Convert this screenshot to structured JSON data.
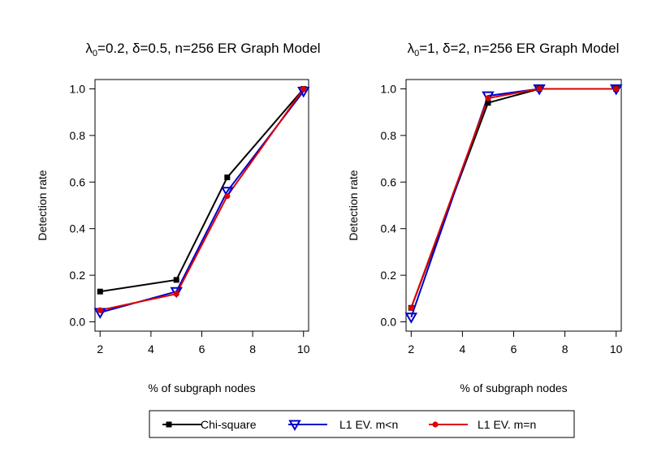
{
  "legend": {
    "entries": [
      {
        "label": "Chi-square",
        "color": "#000000",
        "marker": "square"
      },
      {
        "label": "L1 EV. m<n",
        "color": "#0000cc",
        "marker": "triangle-down"
      },
      {
        "label": "L1 EV. m=n",
        "color": "#dd0000",
        "marker": "circle"
      }
    ]
  },
  "chart_data": [
    {
      "type": "line",
      "title_pre": "λ",
      "title_sub": "0",
      "title_post": "=0.2, δ=0.5, n=256 ER Graph Model",
      "xlabel": "% of subgraph nodes",
      "ylabel": "Detection rate",
      "xlim": [
        1.8,
        10.2
      ],
      "ylim": [
        -0.04,
        1.04
      ],
      "xticks": [
        2,
        4,
        6,
        8,
        10
      ],
      "yticks": [
        "0.0",
        "0.2",
        "0.4",
        "0.6",
        "0.8",
        "1.0"
      ],
      "x": [
        2,
        5,
        7,
        10
      ],
      "series": [
        {
          "name": "Chi-square",
          "values": [
            0.13,
            0.18,
            0.62,
            1.0
          ]
        },
        {
          "name": "L1 EV. m<n",
          "values": [
            0.04,
            0.13,
            0.56,
            0.99
          ]
        },
        {
          "name": "L1 EV. m=n",
          "values": [
            0.05,
            0.12,
            0.54,
            1.0
          ]
        }
      ]
    },
    {
      "type": "line",
      "title_pre": "λ",
      "title_sub": "0",
      "title_post": "=1, δ=2, n=256 ER Graph Model",
      "xlabel": "% of subgraph nodes",
      "ylabel": "Detection rate",
      "xlim": [
        1.8,
        10.2
      ],
      "ylim": [
        -0.04,
        1.04
      ],
      "xticks": [
        2,
        4,
        6,
        8,
        10
      ],
      "yticks": [
        "0.0",
        "0.2",
        "0.4",
        "0.6",
        "0.8",
        "1.0"
      ],
      "x": [
        2,
        5,
        7,
        10
      ],
      "series": [
        {
          "name": "Chi-square",
          "values": [
            0.06,
            0.94,
            1.0,
            1.0
          ]
        },
        {
          "name": "L1 EV. m<n",
          "values": [
            0.02,
            0.97,
            1.0,
            1.0
          ]
        },
        {
          "name": "L1 EV. m=n",
          "values": [
            0.06,
            0.96,
            1.0,
            1.0
          ]
        }
      ]
    }
  ]
}
